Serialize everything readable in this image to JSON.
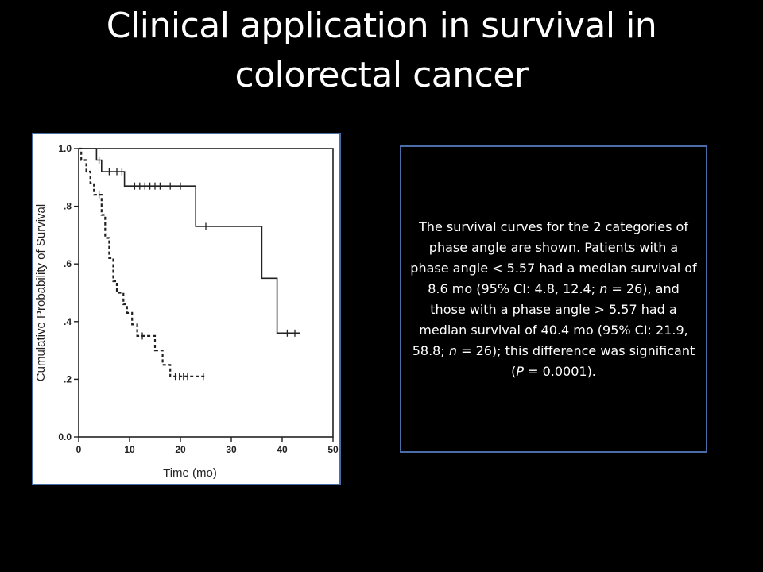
{
  "slide": {
    "title_line1": "Clinical application in survival in",
    "title_line2": "colorectal cancer"
  },
  "caption": {
    "parts": [
      {
        "text": "The survival curves for the 2 categories of phase angle are shown. Patients with a phase angle < 5.57 had a median survival of 8.6 mo (95% CI: 4.8, 12.4; ",
        "italic": false
      },
      {
        "text": "n",
        "italic": true
      },
      {
        "text": " = 26), and those with a phase angle > 5.57 had a median survival of 40.4 mo (95% CI: 21.9, 58.8; ",
        "italic": false
      },
      {
        "text": "n",
        "italic": true
      },
      {
        "text": " = 26); this difference was significant (",
        "italic": false
      },
      {
        "text": "P",
        "italic": true
      },
      {
        "text": " = 0.0001).",
        "italic": false
      }
    ]
  },
  "colors": {
    "background": "#000000",
    "frame_border": "#4a6ca8",
    "plot_ink": "#222222"
  },
  "chart_data": {
    "type": "line",
    "title": "",
    "xlabel": "Time (mo)",
    "ylabel": "Cumulative Probability of Survival",
    "xlim": [
      0,
      50
    ],
    "ylim": [
      0.0,
      1.0
    ],
    "xticks": [
      0,
      10,
      20,
      30,
      40,
      50
    ],
    "yticks": [
      0.0,
      0.2,
      0.4,
      0.6,
      0.8,
      1.0
    ],
    "xtick_labels": [
      "0",
      "10",
      "20",
      "30",
      "40",
      "50"
    ],
    "ytick_labels": [
      "0.0",
      ".2",
      ".4",
      ".6",
      ".8",
      "1.0"
    ],
    "grid": false,
    "legend": "none",
    "series": [
      {
        "style": "solid",
        "x": [
          0,
          3.5,
          3.5,
          4.5,
          4.5,
          9,
          9,
          23,
          23,
          36,
          36,
          39,
          39,
          43.5
        ],
        "y": [
          1.0,
          1.0,
          0.96,
          0.96,
          0.92,
          0.92,
          0.87,
          0.87,
          0.73,
          0.73,
          0.55,
          0.55,
          0.36,
          0.36
        ],
        "censored": [
          {
            "x": 4,
            "y": 0.96
          },
          {
            "x": 6,
            "y": 0.92
          },
          {
            "x": 7.5,
            "y": 0.92
          },
          {
            "x": 8.5,
            "y": 0.92
          },
          {
            "x": 11,
            "y": 0.87
          },
          {
            "x": 12,
            "y": 0.87
          },
          {
            "x": 13,
            "y": 0.87
          },
          {
            "x": 14,
            "y": 0.87
          },
          {
            "x": 15,
            "y": 0.87
          },
          {
            "x": 16,
            "y": 0.87
          },
          {
            "x": 18,
            "y": 0.87
          },
          {
            "x": 20,
            "y": 0.87
          },
          {
            "x": 25,
            "y": 0.73
          },
          {
            "x": 41,
            "y": 0.36
          },
          {
            "x": 42.5,
            "y": 0.36
          }
        ]
      },
      {
        "style": "dashed",
        "x": [
          0,
          0.5,
          0.5,
          1.5,
          1.5,
          2.3,
          2.3,
          3,
          3,
          4.5,
          4.5,
          5.2,
          5.2,
          6,
          6,
          6.8,
          6.8,
          7.5,
          7.5,
          8.8,
          8.8,
          9.5,
          9.5,
          10.5,
          10.5,
          11.5,
          11.5,
          15,
          15,
          16.5,
          16.5,
          18,
          18,
          25
        ],
        "y": [
          1.0,
          1.0,
          0.96,
          0.96,
          0.92,
          0.92,
          0.88,
          0.88,
          0.84,
          0.84,
          0.77,
          0.77,
          0.69,
          0.69,
          0.62,
          0.62,
          0.54,
          0.54,
          0.5,
          0.5,
          0.46,
          0.46,
          0.43,
          0.43,
          0.39,
          0.39,
          0.35,
          0.35,
          0.3,
          0.3,
          0.25,
          0.25,
          0.21,
          0.21
        ],
        "censored": [
          {
            "x": 4,
            "y": 0.84
          },
          {
            "x": 12.5,
            "y": 0.35
          },
          {
            "x": 19,
            "y": 0.21
          },
          {
            "x": 19.8,
            "y": 0.21
          },
          {
            "x": 20.6,
            "y": 0.21
          },
          {
            "x": 21.4,
            "y": 0.21
          },
          {
            "x": 24.5,
            "y": 0.21
          }
        ]
      }
    ]
  }
}
